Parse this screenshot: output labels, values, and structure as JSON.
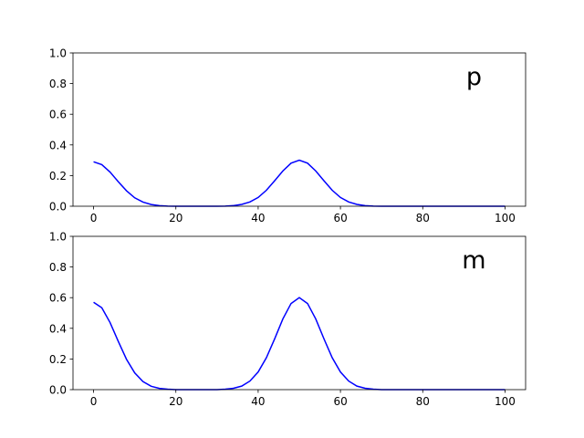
{
  "chart_data": [
    {
      "type": "line",
      "annotation": "p",
      "x": [
        0,
        2,
        4,
        6,
        8,
        10,
        12,
        14,
        16,
        18,
        20,
        22,
        24,
        26,
        28,
        30,
        32,
        34,
        36,
        38,
        40,
        42,
        44,
        46,
        48,
        50,
        52,
        54,
        56,
        58,
        60,
        62,
        64,
        66,
        68,
        70,
        72,
        74,
        76,
        78,
        80,
        82,
        84,
        86,
        88,
        90,
        92,
        94,
        96,
        98,
        100
      ],
      "series": [
        {
          "color": "#0000ff",
          "values": [
            0.29,
            0.271,
            0.223,
            0.16,
            0.101,
            0.055,
            0.027,
            0.011,
            0.004,
            0.001,
            0,
            0,
            0,
            0,
            0,
            0,
            0.001,
            0.004,
            0.012,
            0.028,
            0.057,
            0.104,
            0.166,
            0.23,
            0.281,
            0.3,
            0.281,
            0.23,
            0.166,
            0.104,
            0.057,
            0.028,
            0.012,
            0.004,
            0.001,
            0,
            0,
            0,
            0,
            0,
            0,
            0,
            0,
            0,
            0,
            0,
            0,
            0,
            0,
            0,
            0
          ]
        }
      ],
      "xlim": [
        -5,
        105
      ],
      "xticks": [
        0,
        20,
        40,
        60,
        80,
        100
      ],
      "ylim": [
        0,
        1
      ],
      "yticks": [
        {
          "value": 0,
          "label": "0.0"
        },
        0.2,
        0.4,
        0.6,
        0.8,
        {
          "value": 1,
          "label": "1.0"
        }
      ]
    },
    {
      "type": "line",
      "annotation": "m",
      "x": [
        0,
        2,
        4,
        6,
        8,
        10,
        12,
        14,
        16,
        18,
        20,
        22,
        24,
        26,
        28,
        30,
        32,
        34,
        36,
        38,
        40,
        42,
        44,
        46,
        48,
        50,
        52,
        54,
        56,
        58,
        60,
        62,
        64,
        66,
        68,
        70,
        72,
        74,
        76,
        78,
        80,
        82,
        84,
        86,
        88,
        90,
        92,
        94,
        96,
        98,
        100
      ],
      "series": [
        {
          "color": "#0000ff",
          "values": [
            0.57,
            0.534,
            0.438,
            0.315,
            0.198,
            0.109,
            0.053,
            0.022,
            0.008,
            0.003,
            0,
            0,
            0,
            0,
            0,
            0,
            0.003,
            0.009,
            0.023,
            0.056,
            0.115,
            0.208,
            0.331,
            0.461,
            0.562,
            0.6,
            0.562,
            0.461,
            0.331,
            0.208,
            0.115,
            0.056,
            0.023,
            0.009,
            0.003,
            0,
            0,
            0,
            0,
            0,
            0,
            0,
            0,
            0,
            0,
            0,
            0,
            0,
            0,
            0,
            0
          ]
        }
      ],
      "xlim": [
        -5,
        105
      ],
      "xticks": [
        0,
        20,
        40,
        60,
        80,
        100
      ],
      "ylim": [
        0,
        1
      ],
      "yticks": [
        {
          "value": 0,
          "label": "0.0"
        },
        0.2,
        0.4,
        0.6,
        0.8,
        {
          "value": 1,
          "label": "1.0"
        }
      ]
    }
  ]
}
